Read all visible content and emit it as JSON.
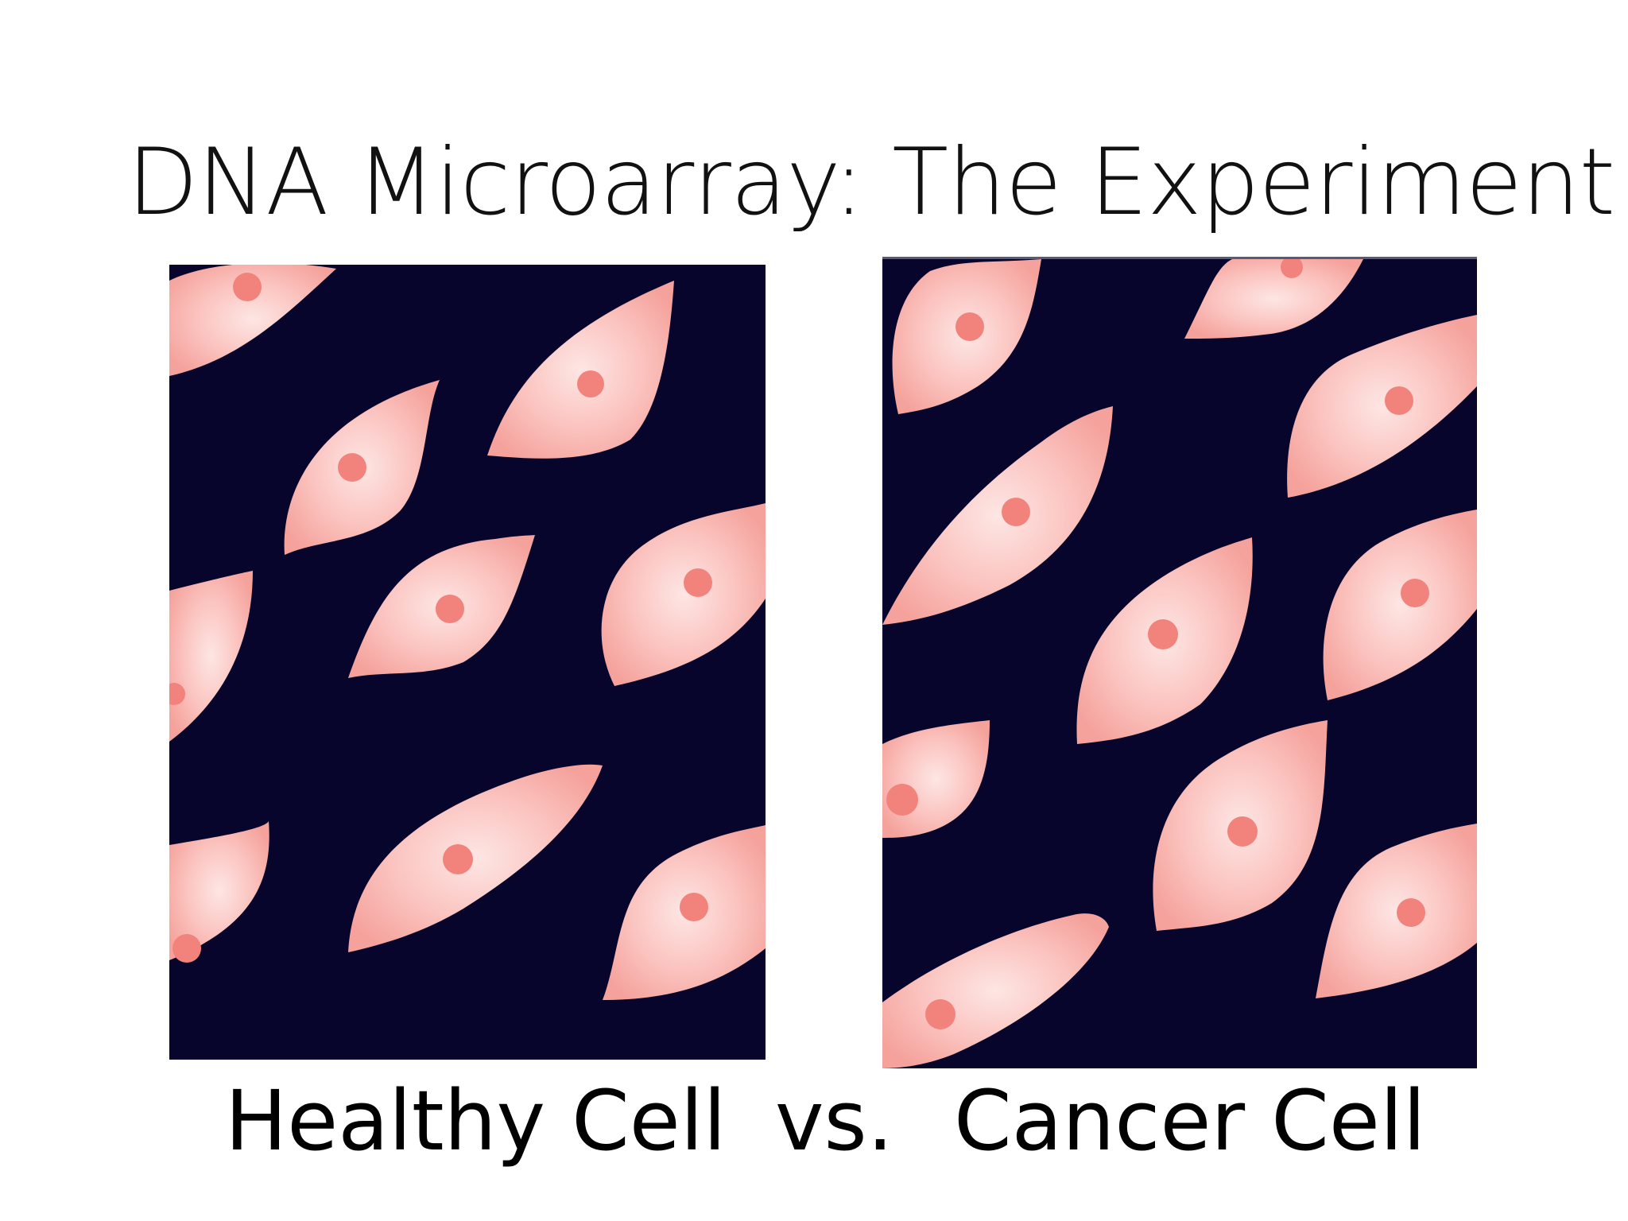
{
  "slide": {
    "title": "DNA Microarray: The Experiment",
    "panels": [
      {
        "name": "healthy-cell-image",
        "caption": "Healthy Cell"
      },
      {
        "name": "cancer-cell-image",
        "caption": "Cancer Cell"
      }
    ],
    "separator": "vs."
  },
  "colors": {
    "background": "#ffffff",
    "panel_background": "#07052b",
    "cell_outer": "#f7a39e",
    "cell_inner": "#fde3e2",
    "nucleus": "#f2837c",
    "text": "#000000"
  }
}
